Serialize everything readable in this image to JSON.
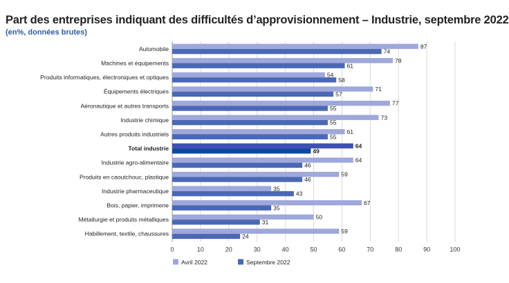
{
  "chart_data": {
    "type": "bar",
    "orientation": "horizontal",
    "title": "Part des entreprises indiquant des difficultés d’approvisionnement – Industrie, septembre 2022",
    "subtitle": "(en%, données brutes)",
    "categories": [
      "Automobile",
      "Machines et équipements",
      "Produits informatiques, électroniques et optiques",
      "Équipements électriques",
      "Aéronautique et autres transports",
      "Industrie chimique",
      "Autres produits industriels",
      "Total industrie",
      "Industrie agro-alimentaire",
      "Produits en caoutchouc, plastique",
      "Industrie pharmaceutique",
      "Bois, papier, imprimerie",
      "Métallurgie et produits métalliques",
      "Habillement, textile, chaussures"
    ],
    "highlight_category": "Total industrie",
    "series": [
      {
        "name": "Avril 2022",
        "color": "#9fa8da",
        "highlight_color": "#3f51b5",
        "values": [
          87,
          78,
          54,
          71,
          77,
          73,
          61,
          64,
          64,
          59,
          35,
          67,
          50,
          59
        ]
      },
      {
        "name": "Septembre 2022",
        "color": "#4a68b5",
        "highlight_color": "#0d47a1",
        "values": [
          74,
          61,
          58,
          57,
          55,
          55,
          55,
          49,
          46,
          46,
          43,
          35,
          31,
          24
        ]
      }
    ],
    "xlim": [
      0,
      100
    ],
    "xticks": [
      "0",
      "10",
      "20",
      "30",
      "40",
      "50",
      "60",
      "70",
      "80",
      "90",
      "100"
    ],
    "grid": true,
    "legend": "bottom-left"
  }
}
